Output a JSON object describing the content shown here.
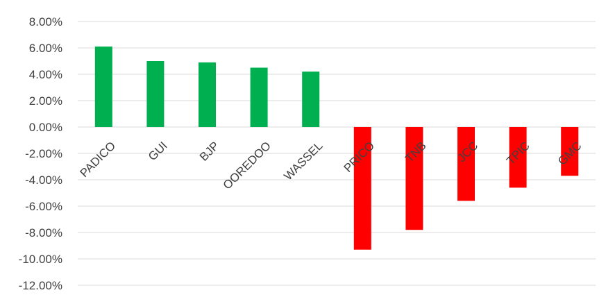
{
  "chart_data": {
    "type": "bar",
    "categories": [
      "PADICO",
      "GUI",
      "BJP",
      "OOREDOO",
      "WASSEL",
      "PRICO",
      "TNB",
      "JCC",
      "TPIC",
      "GMC"
    ],
    "values": [
      6.1,
      5.0,
      4.9,
      4.5,
      4.2,
      -9.3,
      -7.8,
      -5.6,
      -4.6,
      -3.7
    ],
    "title": "",
    "xlabel": "",
    "ylabel": "",
    "ylim": [
      -12,
      8
    ],
    "yticks": [
      8,
      6,
      4,
      2,
      0,
      -2,
      -4,
      -6,
      -8,
      -10,
      -12
    ],
    "y_tick_labels": [
      "8.00%",
      "6.00%",
      "4.00%",
      "2.00%",
      "0.00%",
      "-2.00%",
      "-4.00%",
      "-6.00%",
      "-8.00%",
      "-10.00%",
      "-12.00%"
    ],
    "grid": true,
    "legend": "none",
    "colors": {
      "positive": "#00b050",
      "negative": "#ff0000",
      "grid": "#d9d9d9",
      "text": "#404040"
    }
  }
}
